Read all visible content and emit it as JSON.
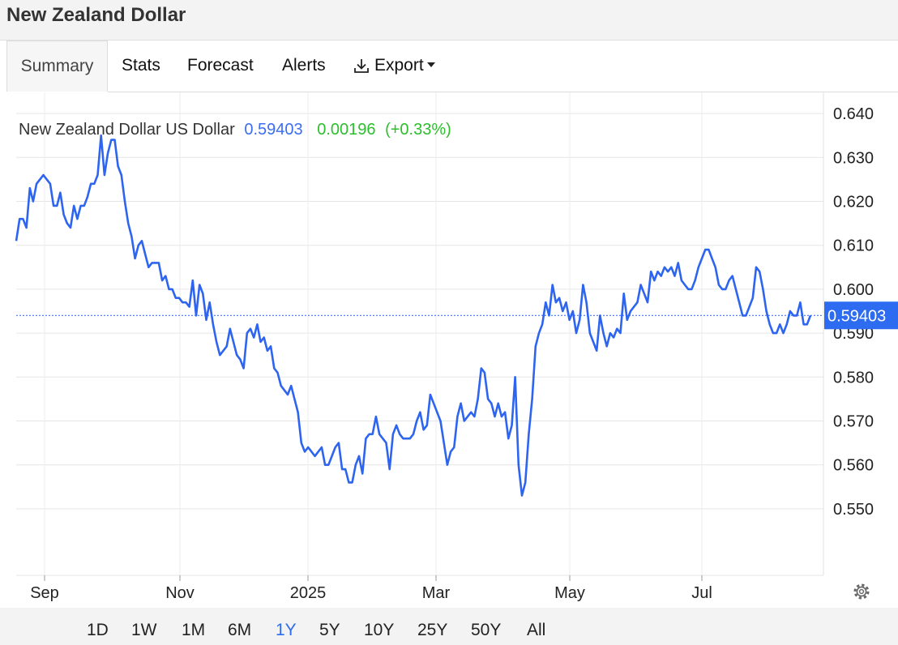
{
  "page": {
    "title": "New Zealand Dollar"
  },
  "tabs": [
    "Summary",
    "Stats",
    "Forecast",
    "Alerts",
    "Export"
  ],
  "colors": {
    "line": "#2d64f0",
    "price": "#3a6df0",
    "change": "#2cbf2c",
    "grid": "#e6e6e6",
    "axis": "#333333"
  },
  "chart_data": {
    "type": "line",
    "legend": {
      "name": "New Zealand Dollar US Dollar",
      "price": "0.59403",
      "change": "0.00196",
      "change_pct": "(+0.33%)"
    },
    "last_value": 0.59403,
    "last_label": "0.59403",
    "y_ticks": [
      "0.640",
      "0.630",
      "0.620",
      "0.610",
      "0.600",
      "0.590",
      "0.580",
      "0.570",
      "0.560",
      "0.550"
    ],
    "x_labels": [
      "Sep",
      "Nov",
      "2025",
      "Mar",
      "May",
      "Jul"
    ],
    "ylim": [
      0.54,
      0.642
    ],
    "grid": true,
    "values": [
      0.611,
      0.616,
      0.616,
      0.614,
      0.623,
      0.62,
      0.624,
      0.625,
      0.626,
      0.625,
      0.624,
      0.619,
      0.619,
      0.622,
      0.617,
      0.615,
      0.614,
      0.619,
      0.616,
      0.619,
      0.619,
      0.621,
      0.624,
      0.624,
      0.626,
      0.635,
      0.626,
      0.631,
      0.634,
      0.634,
      0.628,
      0.626,
      0.62,
      0.615,
      0.612,
      0.607,
      0.61,
      0.611,
      0.608,
      0.605,
      0.606,
      0.606,
      0.606,
      0.602,
      0.603,
      0.6,
      0.6,
      0.598,
      0.598,
      0.597,
      0.597,
      0.596,
      0.602,
      0.594,
      0.601,
      0.599,
      0.593,
      0.597,
      0.592,
      0.588,
      0.585,
      0.586,
      0.587,
      0.591,
      0.588,
      0.585,
      0.584,
      0.582,
      0.59,
      0.591,
      0.589,
      0.592,
      0.588,
      0.589,
      0.586,
      0.587,
      0.582,
      0.581,
      0.578,
      0.577,
      0.576,
      0.578,
      0.575,
      0.572,
      0.565,
      0.563,
      0.564,
      0.563,
      0.562,
      0.563,
      0.564,
      0.56,
      0.56,
      0.562,
      0.564,
      0.565,
      0.559,
      0.559,
      0.556,
      0.556,
      0.56,
      0.562,
      0.558,
      0.566,
      0.567,
      0.567,
      0.571,
      0.567,
      0.566,
      0.565,
      0.559,
      0.567,
      0.569,
      0.567,
      0.566,
      0.566,
      0.566,
      0.567,
      0.57,
      0.572,
      0.568,
      0.569,
      0.576,
      0.574,
      0.572,
      0.57,
      0.565,
      0.56,
      0.563,
      0.564,
      0.571,
      0.574,
      0.57,
      0.571,
      0.572,
      0.571,
      0.575,
      0.582,
      0.581,
      0.575,
      0.574,
      0.571,
      0.574,
      0.571,
      0.572,
      0.566,
      0.569,
      0.58,
      0.56,
      0.553,
      0.556,
      0.567,
      0.575,
      0.587,
      0.59,
      0.592,
      0.597,
      0.594,
      0.601,
      0.597,
      0.598,
      0.595,
      0.597,
      0.593,
      0.595,
      0.59,
      0.593,
      0.601,
      0.597,
      0.59,
      0.588,
      0.586,
      0.594,
      0.59,
      0.587,
      0.59,
      0.589,
      0.591,
      0.59,
      0.599,
      0.593,
      0.595,
      0.596,
      0.597,
      0.601,
      0.599,
      0.597,
      0.604,
      0.602,
      0.604,
      0.603,
      0.605,
      0.604,
      0.605,
      0.603,
      0.606,
      0.602,
      0.601,
      0.6,
      0.6,
      0.602,
      0.605,
      0.607,
      0.609,
      0.609,
      0.607,
      0.605,
      0.601,
      0.6,
      0.6,
      0.602,
      0.603,
      0.6,
      0.597,
      0.594,
      0.594,
      0.596,
      0.598,
      0.605,
      0.604,
      0.6,
      0.595,
      0.592,
      0.59,
      0.59,
      0.592,
      0.59,
      0.592,
      0.595,
      0.594,
      0.594,
      0.597,
      0.592,
      0.592,
      0.594
    ],
    "time_ranges": [
      "1D",
      "1W",
      "1M",
      "6M",
      "1Y",
      "5Y",
      "10Y",
      "25Y",
      "50Y",
      "All"
    ],
    "active_range": "1Y"
  }
}
